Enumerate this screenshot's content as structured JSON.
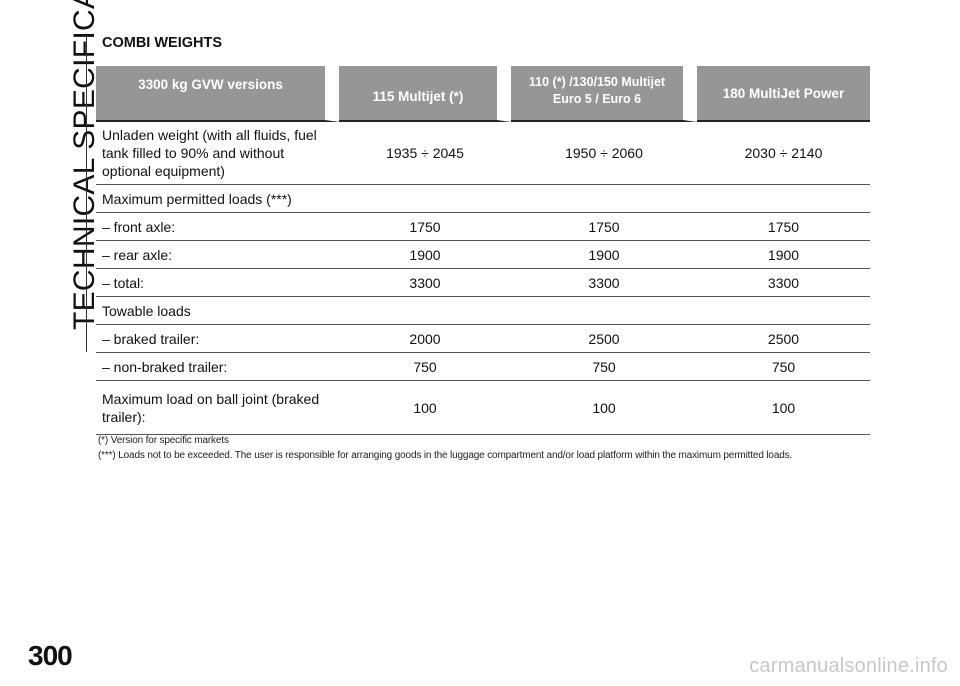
{
  "sidebar": {
    "section_title": "TECHNICAL SPECIFICATIONS"
  },
  "page": {
    "number": "300",
    "watermark": "carmanualsonline.info"
  },
  "heading": "COMBI WEIGHTS",
  "table": {
    "headers": [
      "3300 kg GVW versions",
      "115 Multijet (*)",
      "110 (*) /130/150 Multijet\nEuro 5 / Euro 6",
      "180 MultiJet Power"
    ],
    "rows": [
      {
        "label": "Unladen weight (with all fluids, fuel tank filled to 90% and without optional equipment)",
        "values": [
          "1935 ÷ 2045",
          "1950 ÷ 2060",
          "2030 ÷ 2140"
        ]
      },
      {
        "label": "Maximum permitted loads (***)",
        "values": [
          "",
          "",
          ""
        ]
      },
      {
        "label": "– front axle:",
        "values": [
          "1750",
          "1750",
          "1750"
        ]
      },
      {
        "label": "– rear axle:",
        "values": [
          "1900",
          "1900",
          "1900"
        ]
      },
      {
        "label": "– total:",
        "values": [
          "3300",
          "3300",
          "3300"
        ]
      },
      {
        "label": "Towable loads",
        "values": [
          "",
          "",
          ""
        ]
      },
      {
        "label": "– braked trailer:",
        "values": [
          "2000",
          "2500",
          "2500"
        ]
      },
      {
        "label": "– non-braked trailer:",
        "values": [
          "750",
          "750",
          "750"
        ]
      },
      {
        "label": "Maximum load on ball joint (braked trailer):",
        "values": [
          "100",
          "100",
          "100"
        ]
      }
    ]
  },
  "footnotes": [
    "(*) Version for specific markets",
    "(***) Loads not to be exceeded. The user is responsible for arranging goods in the luggage compartment and/or load platform within the maximum permitted loads."
  ]
}
